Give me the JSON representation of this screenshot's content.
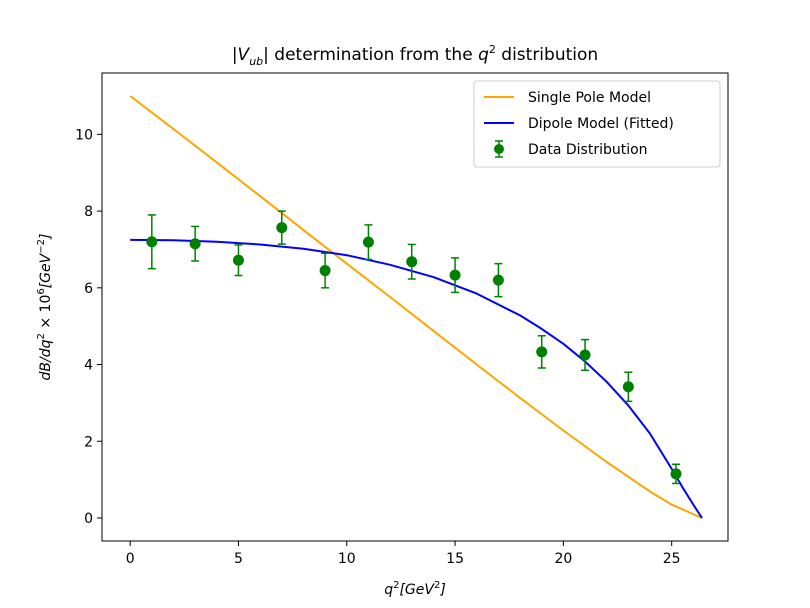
{
  "chart_data": {
    "type": "line",
    "title": "|Vub| determination from the q² distribution",
    "title_parts": {
      "pre": "|",
      "v": "V",
      "sub": "ub",
      "mid": "| determination from the ",
      "q": "q",
      "sup": "2",
      "post": " distribution"
    },
    "xlabel": "q²[GeV²]",
    "xlabel_parts": {
      "q": "q",
      "sup1": "2",
      "unit": "[GeV",
      "sup2": "2",
      "close": "]"
    },
    "ylabel": "dB/dq² × 10⁶[GeV⁻²]",
    "ylabel_parts": {
      "a": "dB/dq",
      "sup1": "2",
      "b": " × 10",
      "sup2": "6",
      "c": "[GeV",
      "sup3": "−2",
      "d": "]"
    },
    "xlim": [
      -1.3,
      27.6
    ],
    "ylim": [
      -0.6,
      11.6
    ],
    "xticks": [
      0,
      5,
      10,
      15,
      20,
      25
    ],
    "yticks": [
      0,
      2,
      4,
      6,
      8,
      10
    ],
    "grid": false,
    "legend_position": "top-right",
    "colors": {
      "single_pole": "#FFA500",
      "dipole": "#0000FF",
      "data": "#008000"
    },
    "series": [
      {
        "name": "Single Pole Model",
        "kind": "line",
        "color": "#FFA500",
        "x": [
          0,
          2,
          4,
          6,
          8,
          10,
          12,
          14,
          16,
          18,
          20,
          22,
          24,
          25,
          26.4
        ],
        "y": [
          11.0,
          10.14,
          9.27,
          8.39,
          7.51,
          6.63,
          5.76,
          4.88,
          4.0,
          3.13,
          2.28,
          1.46,
          0.69,
          0.35,
          0.0
        ]
      },
      {
        "name": "Dipole Model (Fitted)",
        "kind": "line",
        "color": "#0000FF",
        "x": [
          0,
          2,
          4,
          6,
          8,
          10,
          12,
          14,
          16,
          18,
          19,
          20,
          21,
          22,
          23,
          24,
          25,
          25.5,
          26,
          26.4
        ],
        "y": [
          7.25,
          7.24,
          7.2,
          7.13,
          7.02,
          6.85,
          6.6,
          6.28,
          5.85,
          5.28,
          4.93,
          4.54,
          4.08,
          3.55,
          2.93,
          2.2,
          1.28,
          0.8,
          0.35,
          0.0
        ]
      },
      {
        "name": "Data Distribution",
        "kind": "errorbar",
        "color": "#008000",
        "x": [
          1,
          3,
          5,
          7,
          9,
          11,
          13,
          15,
          17,
          19,
          21,
          23,
          25.2
        ],
        "y": [
          7.2,
          7.15,
          6.72,
          7.57,
          6.45,
          7.19,
          6.68,
          6.33,
          6.2,
          4.33,
          4.25,
          3.42,
          1.15
        ],
        "yerr": [
          0.7,
          0.45,
          0.4,
          0.43,
          0.45,
          0.45,
          0.45,
          0.45,
          0.43,
          0.42,
          0.4,
          0.38,
          0.25
        ]
      }
    ]
  }
}
